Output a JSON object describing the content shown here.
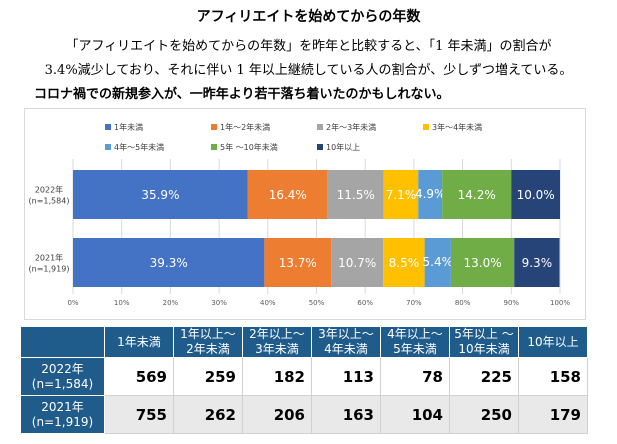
{
  "header": {
    "title": "アフィリエイトを始めてからの年数",
    "line1": "「アフィリエイトを始めてからの年数」を昨年と比較すると、「1 年未満」の割合が",
    "line2": "3.4%減少しており、それに伴い 1 年以上継続している人の割合が、少しずつ増えている。",
    "line3": "コロナ禍での新規参入が、一昨年より若干落ち着いたのかもしれない。"
  },
  "chart_data": {
    "type": "bar",
    "orientation": "horizontal",
    "stacked": "100%",
    "categories": [
      "2022年\n(n=1,584)",
      "2021年\n(n=1,919)"
    ],
    "series": [
      {
        "name": "1年未満",
        "values": [
          35.9,
          39.3
        ],
        "color": "#4472c4"
      },
      {
        "name": "1年～2年未満",
        "values": [
          16.4,
          13.7
        ],
        "color": "#ed7d31"
      },
      {
        "name": "2年～3年未満",
        "values": [
          11.5,
          10.7
        ],
        "color": "#a5a5a5"
      },
      {
        "name": "3年～4年未満",
        "values": [
          7.1,
          8.5
        ],
        "color": "#ffc000"
      },
      {
        "name": "4年～5年未満",
        "values": [
          4.9,
          5.4
        ],
        "color": "#5b9bd5"
      },
      {
        "name": "5年 ～10年未満",
        "values": [
          14.2,
          13.0
        ],
        "color": "#70ad47"
      },
      {
        "name": "10年以上",
        "values": [
          10.0,
          9.3
        ],
        "color": "#264478"
      }
    ],
    "data_labels": [
      [
        "35.9%",
        "16.4%",
        "11.5%",
        "7.1%",
        "4.9%",
        "14.2%",
        "10.0%"
      ],
      [
        "39.3%",
        "13.7%",
        "10.7%",
        "8.5%",
        "5.4%",
        "13.0%",
        "9.3%"
      ]
    ],
    "xlim": [
      0,
      100
    ],
    "xticks": [
      "0%",
      "10%",
      "20%",
      "30%",
      "40%",
      "50%",
      "60%",
      "70%",
      "80%",
      "90%",
      "100%"
    ],
    "legend_position": "top"
  },
  "table": {
    "headers": [
      "1年未満",
      "1年以上～\n2年未満",
      "2年以上～\n3年未満",
      "3年以上～\n4年未満",
      "4年以上～\n5年未満",
      "5年以上 ～\n10年未満",
      "10年以上"
    ],
    "rows": [
      {
        "label": "2022年\n(n=1,584)",
        "values": [
          "569",
          "259",
          "182",
          "113",
          "78",
          "225",
          "158"
        ]
      },
      {
        "label": "2021年\n(n=1,919)",
        "values": [
          "755",
          "262",
          "206",
          "163",
          "104",
          "250",
          "179"
        ]
      }
    ]
  }
}
